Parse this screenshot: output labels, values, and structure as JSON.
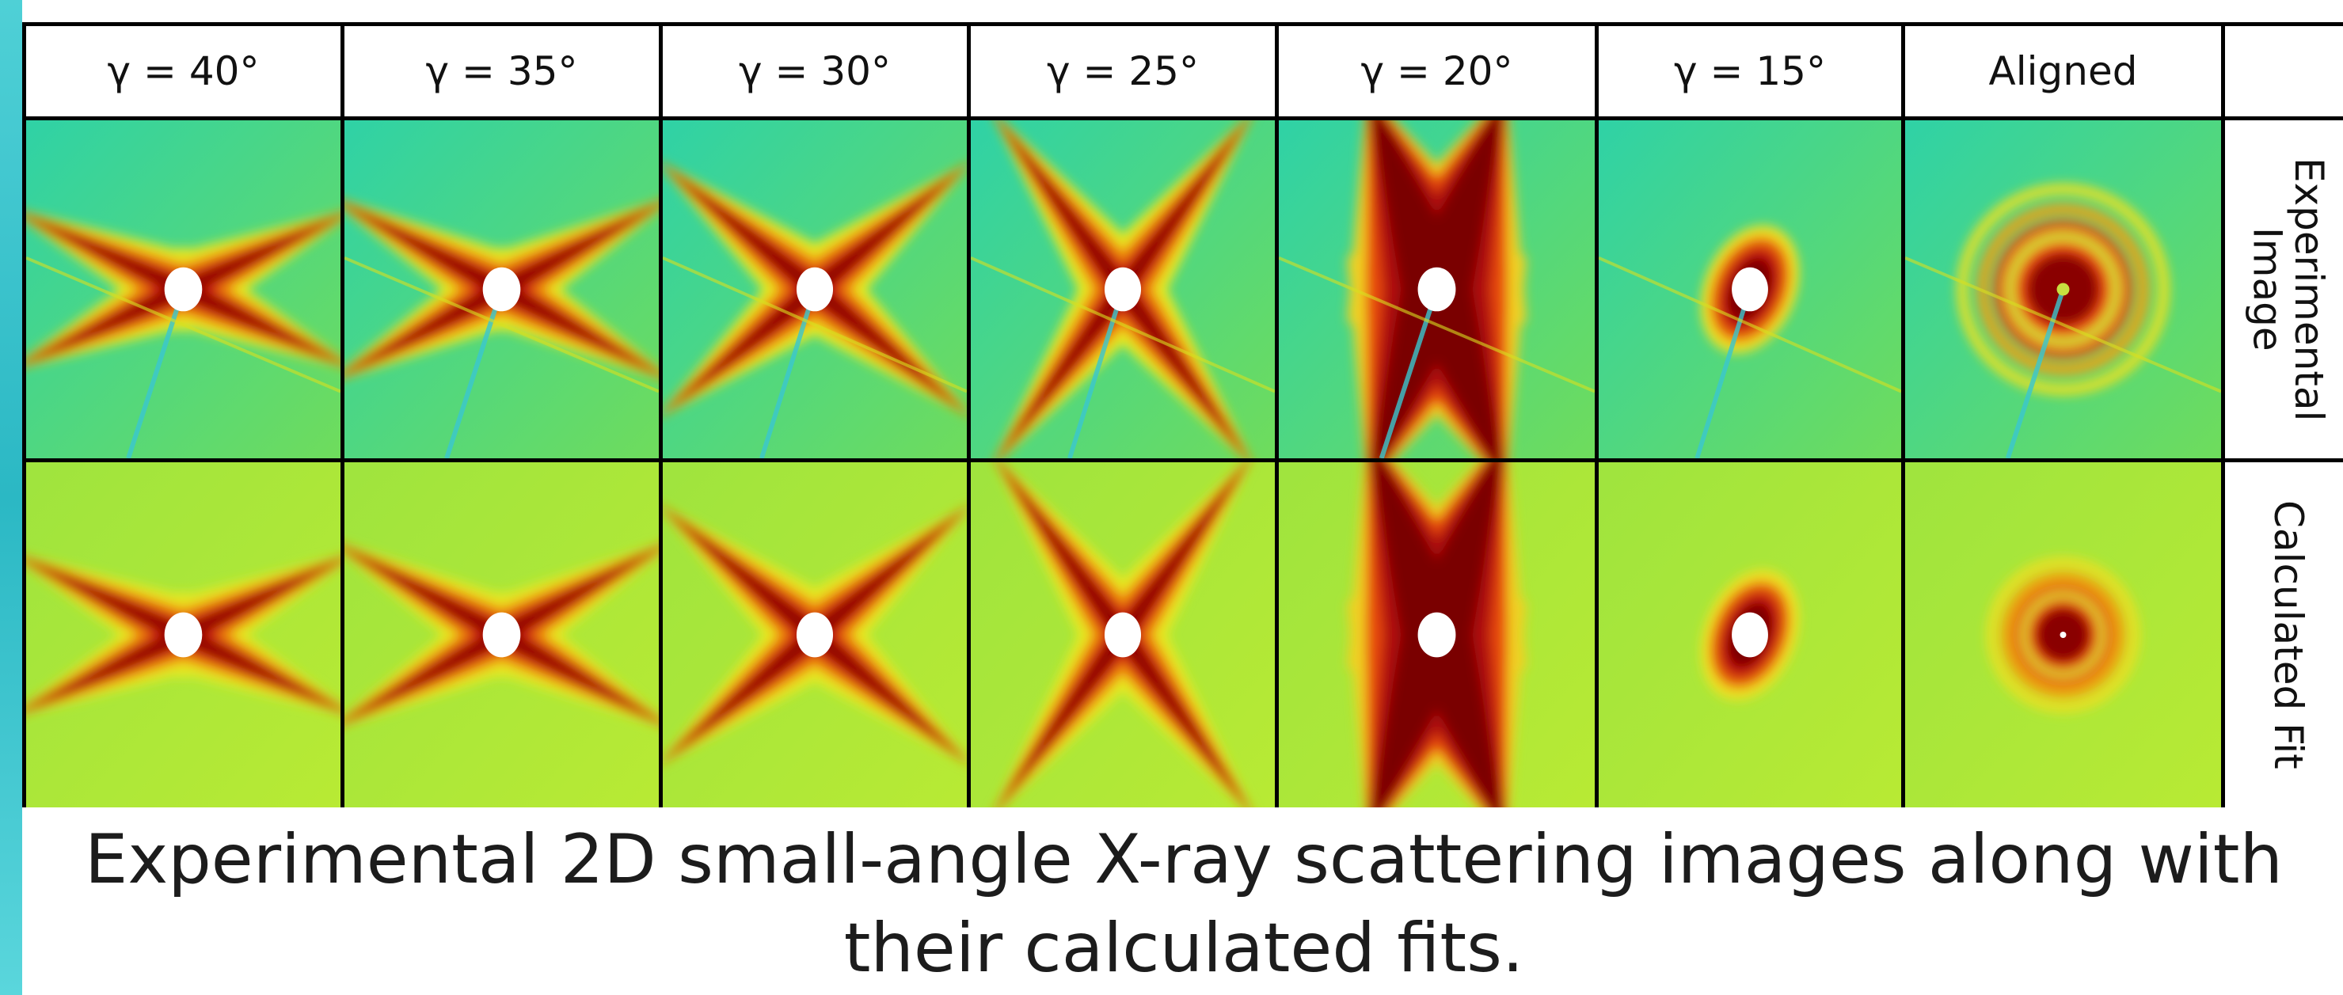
{
  "headers": [
    "γ = 40°",
    "γ = 35°",
    "γ = 30°",
    "γ = 25°",
    "γ = 20°",
    "γ = 15°",
    "Aligned"
  ],
  "rows": [
    {
      "label": "Experimental Image"
    },
    {
      "label": "Calculated Fit"
    }
  ],
  "caption": "Experimental 2D small-angle X-ray scattering images along with their calculated fits."
}
